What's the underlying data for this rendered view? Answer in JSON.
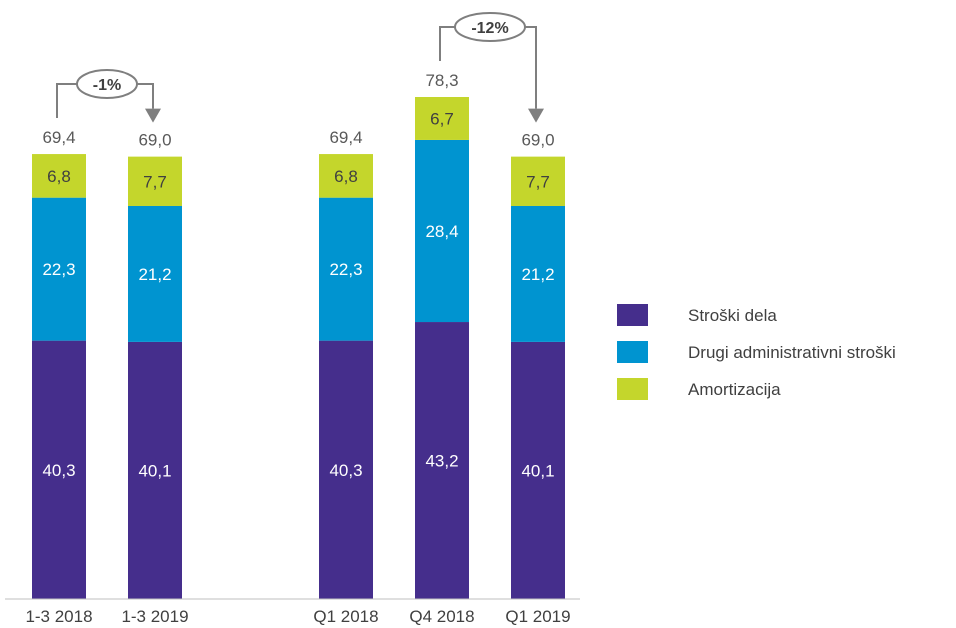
{
  "chart_data": {
    "type": "bar",
    "stacked": true,
    "categories": [
      "1-3 2018",
      "1-3 2019",
      "Q1 2018",
      "Q4 2018",
      "Q1 2019"
    ],
    "series": [
      {
        "name": "Stroški dela",
        "color": "#452e8c",
        "values": [
          40.3,
          40.1,
          40.3,
          43.2,
          40.1
        ],
        "labels": [
          "40,3",
          "40,1",
          "40,3",
          "43,2",
          "40,1"
        ]
      },
      {
        "name": "Drugi administrativni stroški",
        "color": "#0094d0",
        "values": [
          22.3,
          21.2,
          22.3,
          28.4,
          21.2
        ],
        "labels": [
          "22,3",
          "21,2",
          "22,3",
          "28,4",
          "21,2"
        ]
      },
      {
        "name": "Amortizacija",
        "color": "#c4d62c",
        "values": [
          6.8,
          7.7,
          6.8,
          6.7,
          7.7
        ],
        "labels": [
          "6,8",
          "7,7",
          "6,8",
          "6,7",
          "7,7"
        ]
      }
    ],
    "totals": [
      69.4,
      69.0,
      69.4,
      78.3,
      69.0
    ],
    "total_labels": [
      "69,4",
      "69,0",
      "69,4",
      "78,3",
      "69,0"
    ],
    "annotations": [
      {
        "from": "1-3 2018",
        "to": "1-3 2019",
        "text": "-1%"
      },
      {
        "from": "Q4 2018",
        "to": "Q1 2019",
        "text": "-12%"
      }
    ],
    "ylim": [
      0,
      78.3
    ],
    "grid": false,
    "legend_position": "right"
  }
}
